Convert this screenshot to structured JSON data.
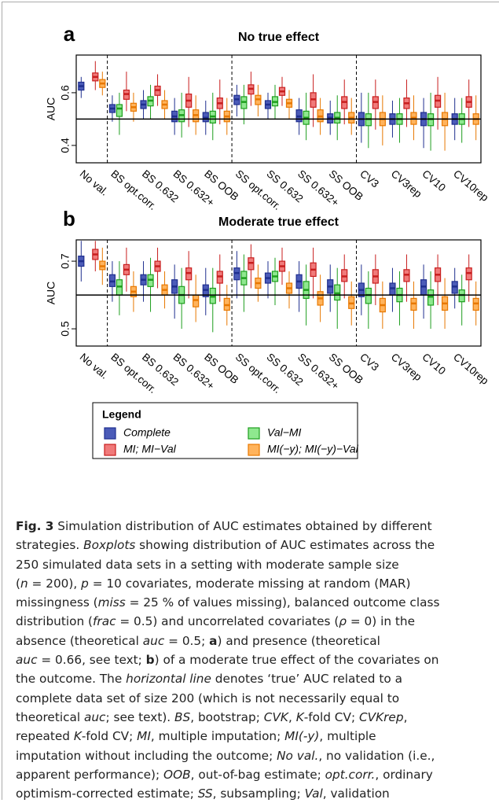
{
  "chart_data": [
    {
      "type": "boxplot",
      "panel_label": "a",
      "title": "No true effect",
      "ylabel": "AUC",
      "categories": [
        "No val.",
        "BS opt.corr.",
        "BS 0.632",
        "BS 0.632+",
        "BS OOB",
        "SS opt.corr.",
        "SS 0.632",
        "SS 0.632+",
        "SS OOB",
        "CV3",
        "CV3rep",
        "CV10",
        "CV10rep"
      ],
      "group_breaks": [
        1,
        5,
        9
      ],
      "ylim": [
        0.334,
        0.743
      ],
      "yticks": [
        0.4,
        0.6
      ],
      "reference_line": 0.5,
      "series": [
        {
          "name": "Complete",
          "color": "#1f2f8f",
          "fill": "#4b5bb8",
          "min": [
            0.58,
            0.49,
            0.5,
            0.44,
            0.44,
            0.51,
            0.5,
            0.44,
            0.44,
            0.41,
            0.43,
            0.39,
            0.42
          ],
          "q1": [
            0.61,
            0.525,
            0.54,
            0.49,
            0.49,
            0.555,
            0.54,
            0.49,
            0.485,
            0.475,
            0.48,
            0.475,
            0.48
          ],
          "median": [
            0.625,
            0.54,
            0.555,
            0.51,
            0.505,
            0.575,
            0.555,
            0.51,
            0.505,
            0.5,
            0.5,
            0.5,
            0.5
          ],
          "q3": [
            0.64,
            0.555,
            0.57,
            0.53,
            0.525,
            0.59,
            0.57,
            0.535,
            0.52,
            0.525,
            0.52,
            0.525,
            0.52
          ],
          "max": [
            0.66,
            0.59,
            0.61,
            0.58,
            0.57,
            0.63,
            0.6,
            0.58,
            0.57,
            0.6,
            0.57,
            0.58,
            0.58
          ]
        },
        {
          "name": "Val−MI",
          "color": "#1e9e1e",
          "fill": "#8fe88f",
          "min": [
            null,
            0.44,
            0.5,
            0.43,
            0.42,
            0.48,
            0.5,
            0.42,
            0.42,
            0.39,
            0.41,
            0.38,
            0.41
          ],
          "q1": [
            null,
            0.51,
            0.55,
            0.49,
            0.485,
            0.54,
            0.55,
            0.48,
            0.485,
            0.475,
            0.48,
            0.475,
            0.48
          ],
          "median": [
            null,
            0.54,
            0.57,
            0.515,
            0.51,
            0.565,
            0.565,
            0.505,
            0.505,
            0.5,
            0.5,
            0.5,
            0.5
          ],
          "q3": [
            null,
            0.555,
            0.585,
            0.535,
            0.53,
            0.585,
            0.585,
            0.53,
            0.525,
            0.52,
            0.52,
            0.52,
            0.52
          ],
          "max": [
            null,
            0.6,
            0.63,
            0.6,
            0.6,
            0.63,
            0.63,
            0.6,
            0.59,
            0.6,
            0.58,
            0.6,
            0.58
          ]
        },
        {
          "name": "MI; MI−Val",
          "color": "#c81e1e",
          "fill": "#f07a7a",
          "min": [
            0.61,
            0.53,
            0.55,
            0.47,
            0.48,
            0.55,
            0.55,
            0.47,
            0.48,
            0.46,
            0.47,
            0.46,
            0.47
          ],
          "q1": [
            0.645,
            0.575,
            0.59,
            0.545,
            0.54,
            0.595,
            0.59,
            0.545,
            0.54,
            0.54,
            0.54,
            0.545,
            0.545
          ],
          "median": [
            0.66,
            0.595,
            0.61,
            0.57,
            0.56,
            0.615,
            0.605,
            0.575,
            0.565,
            0.565,
            0.56,
            0.57,
            0.565
          ],
          "q3": [
            0.675,
            0.61,
            0.625,
            0.595,
            0.58,
            0.63,
            0.62,
            0.6,
            0.585,
            0.585,
            0.58,
            0.59,
            0.585
          ],
          "max": [
            0.72,
            0.68,
            0.67,
            0.66,
            0.65,
            0.68,
            0.66,
            0.67,
            0.65,
            0.65,
            0.65,
            0.66,
            0.65
          ]
        },
        {
          "name": "MI(−y); MI(−y)−Val",
          "color": "#e87800",
          "fill": "#ffb35c",
          "min": [
            0.59,
            0.49,
            0.5,
            0.44,
            0.44,
            0.51,
            0.5,
            0.44,
            0.44,
            0.4,
            0.42,
            0.38,
            0.42
          ],
          "q1": [
            0.62,
            0.53,
            0.54,
            0.49,
            0.49,
            0.555,
            0.545,
            0.49,
            0.485,
            0.475,
            0.48,
            0.475,
            0.48
          ],
          "median": [
            0.635,
            0.545,
            0.555,
            0.515,
            0.51,
            0.575,
            0.56,
            0.51,
            0.505,
            0.5,
            0.505,
            0.5,
            0.5
          ],
          "q3": [
            0.65,
            0.56,
            0.57,
            0.535,
            0.53,
            0.59,
            0.575,
            0.535,
            0.525,
            0.525,
            0.525,
            0.525,
            0.52
          ],
          "max": [
            0.68,
            0.6,
            0.61,
            0.59,
            0.58,
            0.63,
            0.61,
            0.58,
            0.58,
            0.59,
            0.59,
            0.6,
            0.59
          ]
        }
      ]
    },
    {
      "type": "boxplot",
      "panel_label": "b",
      "title": "Moderate true effect",
      "ylabel": "AUC",
      "categories": [
        "No val.",
        "BS opt.corr.",
        "BS 0.632",
        "BS 0.632+",
        "BS OOB",
        "SS opt.corr.",
        "SS 0.632",
        "SS 0.632+",
        "SS OOB",
        "CV3",
        "CV3rep",
        "CV10",
        "CV10rep"
      ],
      "group_breaks": [
        1,
        5,
        9
      ],
      "ylim": [
        0.449,
        0.763
      ],
      "yticks": [
        0.5,
        0.7
      ],
      "reference_line": 0.6,
      "series": [
        {
          "color": "#1f2f8f",
          "fill": "#4b5bb8",
          "min": [
            0.64,
            0.58,
            0.58,
            0.53,
            0.54,
            0.59,
            0.59,
            0.55,
            0.55,
            0.54,
            0.55,
            0.53,
            0.56
          ],
          "q1": [
            0.685,
            0.625,
            0.63,
            0.605,
            0.595,
            0.645,
            0.635,
            0.62,
            0.605,
            0.595,
            0.6,
            0.6,
            0.605
          ],
          "median": [
            0.7,
            0.64,
            0.645,
            0.625,
            0.615,
            0.665,
            0.65,
            0.64,
            0.625,
            0.615,
            0.62,
            0.625,
            0.625
          ],
          "q3": [
            0.715,
            0.66,
            0.66,
            0.645,
            0.63,
            0.68,
            0.665,
            0.66,
            0.645,
            0.635,
            0.635,
            0.645,
            0.64
          ],
          "max": [
            0.76,
            0.7,
            0.7,
            0.69,
            0.68,
            0.73,
            0.7,
            0.7,
            0.69,
            0.69,
            0.68,
            0.69,
            0.68
          ]
        },
        {
          "color": "#1e9e1e",
          "fill": "#8fe88f",
          "min": [
            null,
            0.54,
            0.55,
            0.5,
            0.49,
            0.55,
            0.57,
            0.51,
            0.5,
            0.5,
            0.51,
            0.5,
            0.51
          ],
          "q1": [
            null,
            0.6,
            0.625,
            0.575,
            0.575,
            0.63,
            0.64,
            0.59,
            0.585,
            0.575,
            0.58,
            0.57,
            0.58
          ],
          "median": [
            null,
            0.625,
            0.645,
            0.6,
            0.595,
            0.65,
            0.655,
            0.615,
            0.605,
            0.6,
            0.6,
            0.595,
            0.6
          ],
          "q3": [
            null,
            0.645,
            0.66,
            0.625,
            0.62,
            0.67,
            0.67,
            0.64,
            0.63,
            0.62,
            0.62,
            0.615,
            0.615
          ],
          "max": [
            null,
            0.7,
            0.71,
            0.68,
            0.68,
            0.72,
            0.71,
            0.69,
            0.68,
            0.67,
            0.67,
            0.67,
            0.66
          ]
        },
        {
          "color": "#c81e1e",
          "fill": "#f07a7a",
          "min": [
            0.67,
            0.61,
            0.62,
            0.59,
            0.58,
            0.62,
            0.63,
            0.59,
            0.59,
            0.57,
            0.58,
            0.57,
            0.58
          ],
          "q1": [
            0.705,
            0.66,
            0.67,
            0.645,
            0.635,
            0.675,
            0.67,
            0.655,
            0.64,
            0.635,
            0.64,
            0.64,
            0.645
          ],
          "median": [
            0.72,
            0.675,
            0.685,
            0.665,
            0.655,
            0.695,
            0.685,
            0.675,
            0.655,
            0.655,
            0.66,
            0.66,
            0.665
          ],
          "q3": [
            0.735,
            0.69,
            0.7,
            0.68,
            0.67,
            0.71,
            0.7,
            0.695,
            0.675,
            0.675,
            0.675,
            0.68,
            0.68
          ],
          "max": [
            0.76,
            0.74,
            0.74,
            0.73,
            0.72,
            0.75,
            0.74,
            0.74,
            0.72,
            0.72,
            0.72,
            0.72,
            0.72
          ]
        },
        {
          "color": "#e87800",
          "fill": "#ffb35c",
          "min": [
            0.63,
            0.55,
            0.56,
            0.52,
            0.51,
            0.58,
            0.56,
            0.52,
            0.51,
            0.5,
            0.5,
            0.5,
            0.51
          ],
          "q1": [
            0.675,
            0.595,
            0.6,
            0.565,
            0.555,
            0.62,
            0.605,
            0.57,
            0.56,
            0.55,
            0.555,
            0.555,
            0.555
          ],
          "median": [
            0.685,
            0.61,
            0.615,
            0.585,
            0.57,
            0.635,
            0.62,
            0.59,
            0.575,
            0.57,
            0.575,
            0.575,
            0.575
          ],
          "q3": [
            0.7,
            0.625,
            0.63,
            0.6,
            0.59,
            0.65,
            0.635,
            0.61,
            0.595,
            0.59,
            0.59,
            0.595,
            0.59
          ],
          "max": [
            0.74,
            0.67,
            0.67,
            0.66,
            0.63,
            0.69,
            0.67,
            0.66,
            0.64,
            0.64,
            0.64,
            0.65,
            0.64
          ]
        }
      ]
    }
  ],
  "legend_title": "Legend",
  "caption": {
    "lines": [
      [
        {
          "text": "Fig. 3",
          "style": "bold"
        },
        {
          "text": " Simulation distribution of AUC estimates obtained by different"
        }
      ],
      [
        {
          "text": "strategies. "
        },
        {
          "text": "Boxplots",
          "style": "italic"
        },
        {
          "text": " showing distribution of AUC estimates across the"
        }
      ],
      [
        {
          "text": "250 simulated data sets in a setting with moderate sample size"
        }
      ],
      [
        {
          "text": "("
        },
        {
          "text": "n",
          "style": "italic"
        },
        {
          "text": " = 200), "
        },
        {
          "text": "p",
          "style": "italic"
        },
        {
          "text": " = 10 covariates, moderate missing at random (MAR)"
        }
      ],
      [
        {
          "text": "missingness ("
        },
        {
          "text": "miss",
          "style": "italic"
        },
        {
          "text": " = 25 % of values missing), balanced outcome class"
        }
      ],
      [
        {
          "text": "distribution ("
        },
        {
          "text": "frac",
          "style": "italic"
        },
        {
          "text": " = 0.5) and uncorrelated covariates ("
        },
        {
          "text": "ρ",
          "style": "italic"
        },
        {
          "text": " = 0) in the"
        }
      ],
      [
        {
          "text": "absence (theoretical "
        },
        {
          "text": "auc",
          "style": "italic"
        },
        {
          "text": " = 0.5; "
        },
        {
          "text": "a",
          "style": "bold"
        },
        {
          "text": ") and presence (theoretical"
        }
      ],
      [
        {
          "text": "auc",
          "style": "italic"
        },
        {
          "text": " = 0.66, see text; "
        },
        {
          "text": "b",
          "style": "bold"
        },
        {
          "text": ") of a moderate true effect of the covariates on"
        }
      ],
      [
        {
          "text": "the outcome. The "
        },
        {
          "text": "horizontal line",
          "style": "italic"
        },
        {
          "text": " denotes ‘true’ AUC related to a"
        }
      ],
      [
        {
          "text": "complete data set of size 200 (which is not necessarily equal to"
        }
      ],
      [
        {
          "text": "theoretical "
        },
        {
          "text": "auc",
          "style": "italic"
        },
        {
          "text": "; see text). "
        },
        {
          "text": "BS",
          "style": "italic"
        },
        {
          "text": ", bootstrap; "
        },
        {
          "text": "CVK",
          "style": "italic"
        },
        {
          "text": ", "
        },
        {
          "text": "K",
          "style": "italic"
        },
        {
          "text": "-fold CV; "
        },
        {
          "text": "CVKrep",
          "style": "italic"
        },
        {
          "text": ","
        }
      ],
      [
        {
          "text": "repeated "
        },
        {
          "text": "K",
          "style": "italic"
        },
        {
          "text": "-fold CV; "
        },
        {
          "text": "MI",
          "style": "italic"
        },
        {
          "text": ", multiple imputation; "
        },
        {
          "text": "MI(-y)",
          "style": "italic"
        },
        {
          "text": ", multiple"
        }
      ],
      [
        {
          "text": "imputation without including the outcome; "
        },
        {
          "text": "No val.",
          "style": "italic"
        },
        {
          "text": ", no validation (i.e.,"
        }
      ],
      [
        {
          "text": "apparent performance); "
        },
        {
          "text": "OOB",
          "style": "italic"
        },
        {
          "text": ", out-of-bag estimate; "
        },
        {
          "text": "opt.corr.",
          "style": "italic"
        },
        {
          "text": ", ordinary"
        }
      ],
      [
        {
          "text": "optimism-corrected estimate; "
        },
        {
          "text": "SS",
          "style": "italic"
        },
        {
          "text": ", subsampling; "
        },
        {
          "text": "Val",
          "style": "italic"
        },
        {
          "text": ", validation"
        }
      ]
    ]
  }
}
